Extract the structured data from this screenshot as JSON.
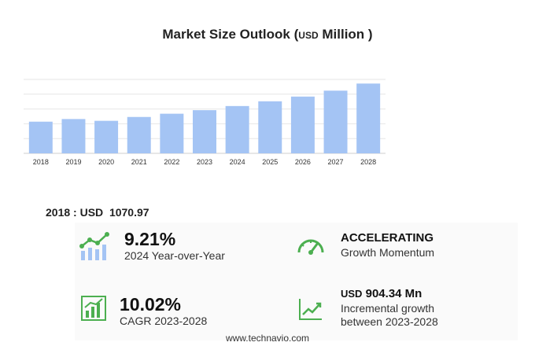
{
  "header": {
    "title_main": "Market Size Outlook",
    "title_paren_open": "(",
    "title_unit_small": "USD",
    "title_unit_big": "Million",
    "title_paren_close": ")"
  },
  "chart_data": {
    "type": "bar",
    "categories": [
      "2018",
      "2019",
      "2020",
      "2021",
      "2022",
      "2023",
      "2024",
      "2025",
      "2026",
      "2027",
      "2028"
    ],
    "values": [
      1070.97,
      1160,
      1100,
      1230,
      1340,
      1460,
      1600,
      1760,
      1920,
      2120,
      2360
    ],
    "title": "Market Size Outlook (USD Million)",
    "ylim": [
      0,
      2500
    ],
    "grid": true,
    "bar_color": "#a4c4f4"
  },
  "base_year": {
    "label": "2018 : USD",
    "value": "1070.97"
  },
  "kpis": {
    "yoy": {
      "value": "9.21%",
      "label": "2024 Year-over-Year"
    },
    "momentum": {
      "value": "ACCELERATING",
      "label": "Growth Momentum"
    },
    "cagr": {
      "value": "10.02%",
      "label": "CAGR 2023-2028"
    },
    "incremental": {
      "currency": "USD",
      "value": "904.34 Mn",
      "label_line1": "Incremental growth",
      "label_line2": "between 2023-2028"
    }
  },
  "colors": {
    "accent_green": "#4caf50",
    "bar_blue": "#a4c4f4"
  },
  "footer": {
    "site": "www.technavio.com"
  }
}
